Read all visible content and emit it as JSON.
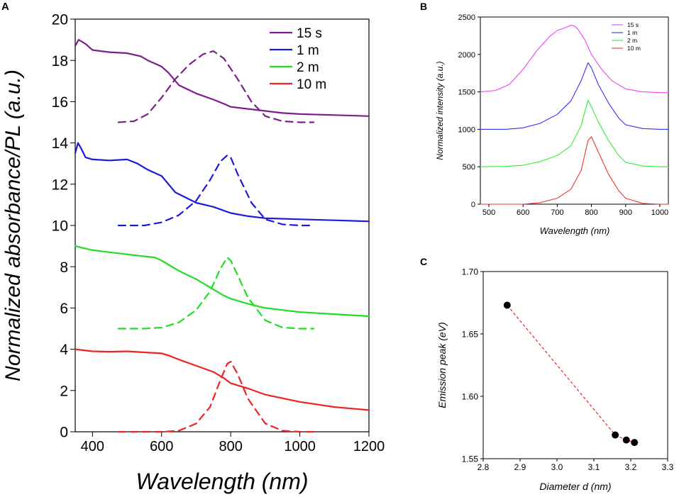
{
  "chart_data": [
    {
      "panel": "A",
      "type": "line",
      "xlabel": "Wavelength (nm)",
      "ylabel": "Normalized absorbance/PL (a.u.)",
      "xlim": [
        350,
        1200
      ],
      "ylim": [
        0,
        20
      ],
      "xticks": [
        400,
        600,
        800,
        1000,
        1200
      ],
      "yticks": [
        0,
        2,
        4,
        6,
        8,
        10,
        12,
        14,
        16,
        18,
        20
      ],
      "legend": {
        "position": "top-right",
        "entries": [
          "15 s",
          "1 m",
          "2 m",
          "10 m"
        ]
      },
      "series": [
        {
          "name": "15 s",
          "kind": "absorbance",
          "style": "solid",
          "color": "#7b1f8a",
          "x": [
            350,
            360,
            380,
            400,
            450,
            500,
            540,
            560,
            600,
            620,
            650,
            700,
            750,
            780,
            800,
            850,
            900,
            950,
            1000,
            1100,
            1200
          ],
          "y": [
            18.7,
            19.0,
            18.8,
            18.5,
            18.4,
            18.35,
            18.2,
            18.0,
            17.7,
            17.4,
            16.8,
            16.4,
            16.1,
            15.9,
            15.75,
            15.65,
            15.55,
            15.45,
            15.4,
            15.35,
            15.3
          ]
        },
        {
          "name": "15 s",
          "kind": "PL",
          "style": "dashed",
          "color": "#7b1f8a",
          "x": [
            475,
            520,
            560,
            600,
            640,
            680,
            720,
            750,
            780,
            820,
            860,
            900,
            950,
            1000,
            1040
          ],
          "y": [
            15.0,
            15.05,
            15.4,
            16.2,
            17.1,
            17.8,
            18.3,
            18.45,
            18.1,
            17.1,
            16.0,
            15.3,
            15.05,
            15.0,
            15.0
          ]
        },
        {
          "name": "1 m",
          "kind": "absorbance",
          "style": "solid",
          "color": "#1a1adf",
          "x": [
            350,
            358,
            365,
            380,
            400,
            450,
            500,
            530,
            560,
            600,
            640,
            700,
            750,
            800,
            850,
            900,
            1000,
            1100,
            1200
          ],
          "y": [
            13.5,
            14.0,
            13.8,
            13.3,
            13.2,
            13.15,
            13.2,
            13.0,
            12.7,
            12.4,
            11.6,
            11.1,
            10.9,
            10.6,
            10.45,
            10.35,
            10.3,
            10.25,
            10.2
          ]
        },
        {
          "name": "1 m",
          "kind": "PL",
          "style": "dashed",
          "color": "#1a1adf",
          "x": [
            475,
            550,
            600,
            650,
            700,
            740,
            770,
            790,
            800,
            820,
            860,
            900,
            950,
            1000,
            1040
          ],
          "y": [
            10.0,
            10.0,
            10.15,
            10.5,
            11.2,
            12.2,
            13.1,
            13.4,
            13.3,
            12.5,
            11.1,
            10.3,
            10.05,
            10.0,
            10.0
          ]
        },
        {
          "name": "2 m",
          "kind": "absorbance",
          "style": "solid",
          "color": "#22dd22",
          "x": [
            350,
            400,
            450,
            500,
            550,
            580,
            600,
            650,
            700,
            750,
            780,
            800,
            850,
            900,
            1000,
            1100,
            1200
          ],
          "y": [
            9.0,
            8.8,
            8.7,
            8.6,
            8.5,
            8.45,
            8.3,
            7.8,
            7.4,
            6.9,
            6.6,
            6.45,
            6.2,
            6.0,
            5.8,
            5.7,
            5.6
          ]
        },
        {
          "name": "2 m",
          "kind": "PL",
          "style": "dashed",
          "color": "#22dd22",
          "x": [
            475,
            550,
            600,
            650,
            700,
            740,
            770,
            790,
            800,
            820,
            850,
            900,
            950,
            1000,
            1040
          ],
          "y": [
            5.0,
            5.0,
            5.05,
            5.3,
            5.9,
            6.8,
            7.9,
            8.45,
            8.3,
            7.6,
            6.5,
            5.4,
            5.05,
            5.0,
            5.0
          ]
        },
        {
          "name": "10 m",
          "kind": "absorbance",
          "style": "solid",
          "color": "#ee2222",
          "x": [
            350,
            400,
            450,
            500,
            550,
            600,
            620,
            650,
            700,
            750,
            780,
            800,
            850,
            900,
            1000,
            1100,
            1200
          ],
          "y": [
            4.0,
            3.9,
            3.88,
            3.9,
            3.85,
            3.8,
            3.7,
            3.5,
            3.2,
            2.9,
            2.6,
            2.35,
            2.1,
            1.8,
            1.45,
            1.2,
            1.05
          ]
        },
        {
          "name": "10 m",
          "kind": "PL",
          "style": "dashed",
          "color": "#ee2222",
          "x": [
            475,
            600,
            650,
            700,
            740,
            770,
            790,
            800,
            820,
            850,
            900,
            950,
            1000,
            1040
          ],
          "y": [
            0.0,
            0.0,
            0.05,
            0.4,
            1.2,
            2.5,
            3.3,
            3.4,
            2.8,
            1.6,
            0.4,
            0.05,
            0.0,
            0.0
          ]
        }
      ]
    },
    {
      "panel": "B",
      "type": "line",
      "xlabel": "Wavelength (nm)",
      "ylabel": "Normalized intensity (a.u.)",
      "xlim": [
        475,
        1025
      ],
      "ylim": [
        0,
        2500
      ],
      "xticks": [
        500,
        600,
        700,
        800,
        900,
        1000
      ],
      "yticks": [
        0,
        500,
        1000,
        1500,
        2000,
        2500
      ],
      "legend": {
        "position": "top-right",
        "entries": [
          "15 s",
          "1 m",
          "2 m",
          "10 m"
        ]
      },
      "series": [
        {
          "name": "15 s",
          "color": "#ee44ee",
          "x": [
            475,
            520,
            560,
            600,
            640,
            680,
            700,
            720,
            740,
            750,
            760,
            780,
            800,
            830,
            860,
            900,
            950,
            1000,
            1025
          ],
          "y": [
            1500,
            1520,
            1600,
            1800,
            2050,
            2250,
            2320,
            2350,
            2390,
            2380,
            2340,
            2200,
            2000,
            1800,
            1650,
            1540,
            1500,
            1490,
            1490
          ]
        },
        {
          "name": "1 m",
          "color": "#3333ee",
          "x": [
            475,
            550,
            600,
            650,
            700,
            740,
            770,
            790,
            800,
            820,
            850,
            880,
            900,
            950,
            1000,
            1025
          ],
          "y": [
            1000,
            1000,
            1020,
            1080,
            1200,
            1380,
            1650,
            1890,
            1820,
            1600,
            1350,
            1150,
            1060,
            1010,
            1000,
            1000
          ]
        },
        {
          "name": "2 m",
          "color": "#33ee33",
          "x": [
            475,
            550,
            600,
            650,
            700,
            740,
            770,
            790,
            800,
            820,
            850,
            880,
            900,
            950,
            1000,
            1025
          ],
          "y": [
            500,
            505,
            520,
            570,
            650,
            780,
            1050,
            1390,
            1300,
            1100,
            850,
            650,
            560,
            510,
            500,
            500
          ]
        },
        {
          "name": "10 m",
          "color": "#ee3333",
          "x": [
            475,
            600,
            650,
            700,
            740,
            770,
            790,
            800,
            820,
            850,
            880,
            900,
            950,
            1000,
            1025
          ],
          "y": [
            0,
            0,
            20,
            80,
            200,
            450,
            850,
            900,
            700,
            400,
            180,
            80,
            10,
            0,
            0
          ]
        }
      ]
    },
    {
      "panel": "C",
      "type": "scatter",
      "xlabel": "Diameter d (nm)",
      "ylabel": "Emission peak (eV)",
      "xlim": [
        2.8,
        3.3
      ],
      "ylim": [
        1.55,
        1.7
      ],
      "xticks": [
        "2.8",
        "2.9",
        "3.0",
        "3.1",
        "3.2",
        "3.3"
      ],
      "yticks": [
        "1.55",
        "1.60",
        "1.65",
        "1.70"
      ],
      "points": {
        "x": [
          2.865,
          3.158,
          3.188,
          3.21
        ],
        "y": [
          1.673,
          1.569,
          1.565,
          1.563
        ]
      },
      "fit_line": {
        "style": "dashed",
        "color": "#ee2222"
      },
      "marker_color": "#000000"
    }
  ]
}
